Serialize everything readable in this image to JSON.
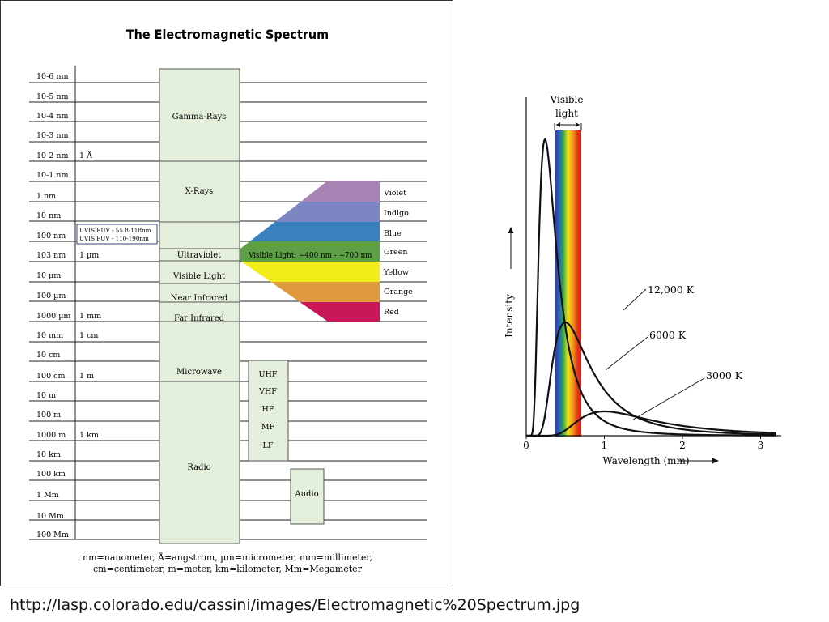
{
  "spectrum": {
    "title": "The Electromagnetic Spectrum",
    "rows": [
      {
        "wavelength": "10-6 nm",
        "example": ""
      },
      {
        "wavelength": "10-5 nm",
        "example": ""
      },
      {
        "wavelength": "10-4 nm",
        "example": ""
      },
      {
        "wavelength": "10-3 nm",
        "example": ""
      },
      {
        "wavelength": "10-2 nm",
        "example": "1 Å"
      },
      {
        "wavelength": "10-1 nm",
        "example": ""
      },
      {
        "wavelength": "1 nm",
        "example": ""
      },
      {
        "wavelength": "10 nm",
        "example": ""
      },
      {
        "wavelength": "100 nm",
        "example": ""
      },
      {
        "wavelength": "103 nm",
        "example": "1 µm"
      },
      {
        "wavelength": "10 µm",
        "example": ""
      },
      {
        "wavelength": "100 µm",
        "example": ""
      },
      {
        "wavelength": "1000 µm",
        "example": "1 mm"
      },
      {
        "wavelength": "10 mm",
        "example": "1 cm"
      },
      {
        "wavelength": "10 cm",
        "example": ""
      },
      {
        "wavelength": "100 cm",
        "example": "1 m"
      },
      {
        "wavelength": "10 m",
        "example": ""
      },
      {
        "wavelength": "100 m",
        "example": ""
      },
      {
        "wavelength": "1000 m",
        "example": "1 km"
      },
      {
        "wavelength": "10 km",
        "example": ""
      },
      {
        "wavelength": "100 km",
        "example": ""
      },
      {
        "wavelength": "1 Mm",
        "example": ""
      },
      {
        "wavelength": "10 Mm",
        "example": ""
      },
      {
        "wavelength": "100 Mm",
        "example": ""
      }
    ],
    "bands": {
      "gamma": "Gamma-Rays",
      "xray": "X-Rays",
      "ultraviolet": "Ultraviolet",
      "visible": "Visible Light",
      "near_ir": "Near Infrared",
      "far_ir": "Far Infrared",
      "microwave": "Microwave",
      "radio": "Radio"
    },
    "uvis": {
      "euv": "UVIS EUV - 55.8-118nm",
      "fuv": "UVIS FUV - 110-190nm"
    },
    "visible_range": "Visible Light:  ~400 nm - ~700 nm",
    "colors": [
      {
        "name": "Violet",
        "hex": "#a784b4"
      },
      {
        "name": "Indigo",
        "hex": "#7b86c2"
      },
      {
        "name": "Blue",
        "hex": "#3a7fbe"
      },
      {
        "name": "Green",
        "hex": "#5fa046"
      },
      {
        "name": "Yellow",
        "hex": "#f1ec1a"
      },
      {
        "name": "Orange",
        "hex": "#e09a3e"
      },
      {
        "name": "Red",
        "hex": "#c9175a"
      }
    ],
    "radio_subbands": [
      "UHF",
      "VHF",
      "HF",
      "MF",
      "LF"
    ],
    "audio": "Audio",
    "legend_line1": "nm=nanometer, Å=angstrom, µm=micrometer, mm=millimeter,",
    "legend_line2": "cm=centimeter, m=meter, km=kilometer, Mm=Megameter",
    "band_fill": "#e3eedb"
  },
  "blackbody": {
    "visible_label_1": "Visible",
    "visible_label_2": "light",
    "ylabel": "Intensity",
    "xlabel": "Wavelength (mm)",
    "xticks": [
      "0",
      "1",
      "2",
      "3"
    ],
    "curves": [
      {
        "name": "12,000 K",
        "peak_x": 0.24
      },
      {
        "name": "6000 K",
        "peak_x": 0.5
      },
      {
        "name": "3000 K",
        "peak_x": 1.0
      }
    ]
  },
  "source_url": "http://lasp.colorado.edu/cassini/images/Electromagnetic%20Spectrum.jpg"
}
